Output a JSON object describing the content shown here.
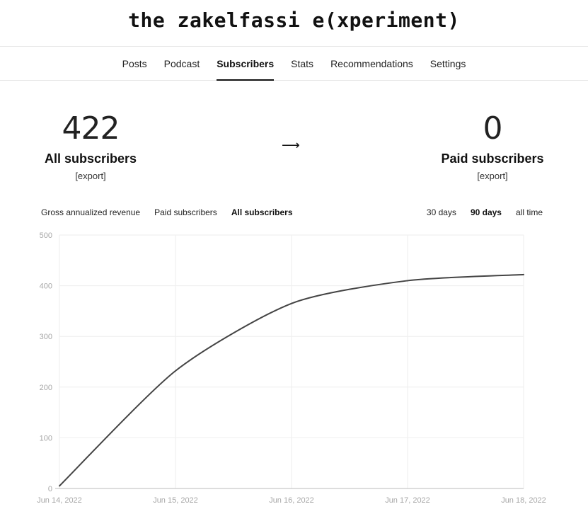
{
  "site": {
    "title": "the zakelfassi e(xperiment)"
  },
  "nav": {
    "tabs": [
      {
        "label": "Posts",
        "active": false
      },
      {
        "label": "Podcast",
        "active": false
      },
      {
        "label": "Subscribers",
        "active": true
      },
      {
        "label": "Stats",
        "active": false
      },
      {
        "label": "Recommendations",
        "active": false
      },
      {
        "label": "Settings",
        "active": false
      }
    ]
  },
  "summary": {
    "all": {
      "count": "422",
      "label": "All subscribers",
      "export": "[export]"
    },
    "arrow": "⟶",
    "paid": {
      "count": "0",
      "label": "Paid subscribers",
      "export": "[export]"
    }
  },
  "metric_tabs": [
    {
      "label": "Gross annualized revenue",
      "active": false
    },
    {
      "label": "Paid subscribers",
      "active": false
    },
    {
      "label": "All subscribers",
      "active": true
    }
  ],
  "range_tabs": [
    {
      "label": "30 days",
      "active": false
    },
    {
      "label": "90 days",
      "active": true
    },
    {
      "label": "all time",
      "active": false
    }
  ],
  "colors": {
    "line": "#444444",
    "grid": "#eeeeee",
    "axis": "#bbbbbb",
    "tick_text": "#a7a7a7"
  },
  "chart_data": {
    "type": "line",
    "x": [
      "Jun 14, 2022",
      "Jun 15, 2022",
      "Jun 16, 2022",
      "Jun 17, 2022",
      "Jun 18, 2022"
    ],
    "series": [
      {
        "values": [
          5,
          232,
          365,
          410,
          422
        ]
      }
    ],
    "ylim": [
      0,
      500
    ],
    "yticks": [
      0,
      100,
      200,
      300,
      400,
      500
    ],
    "grid": true
  }
}
